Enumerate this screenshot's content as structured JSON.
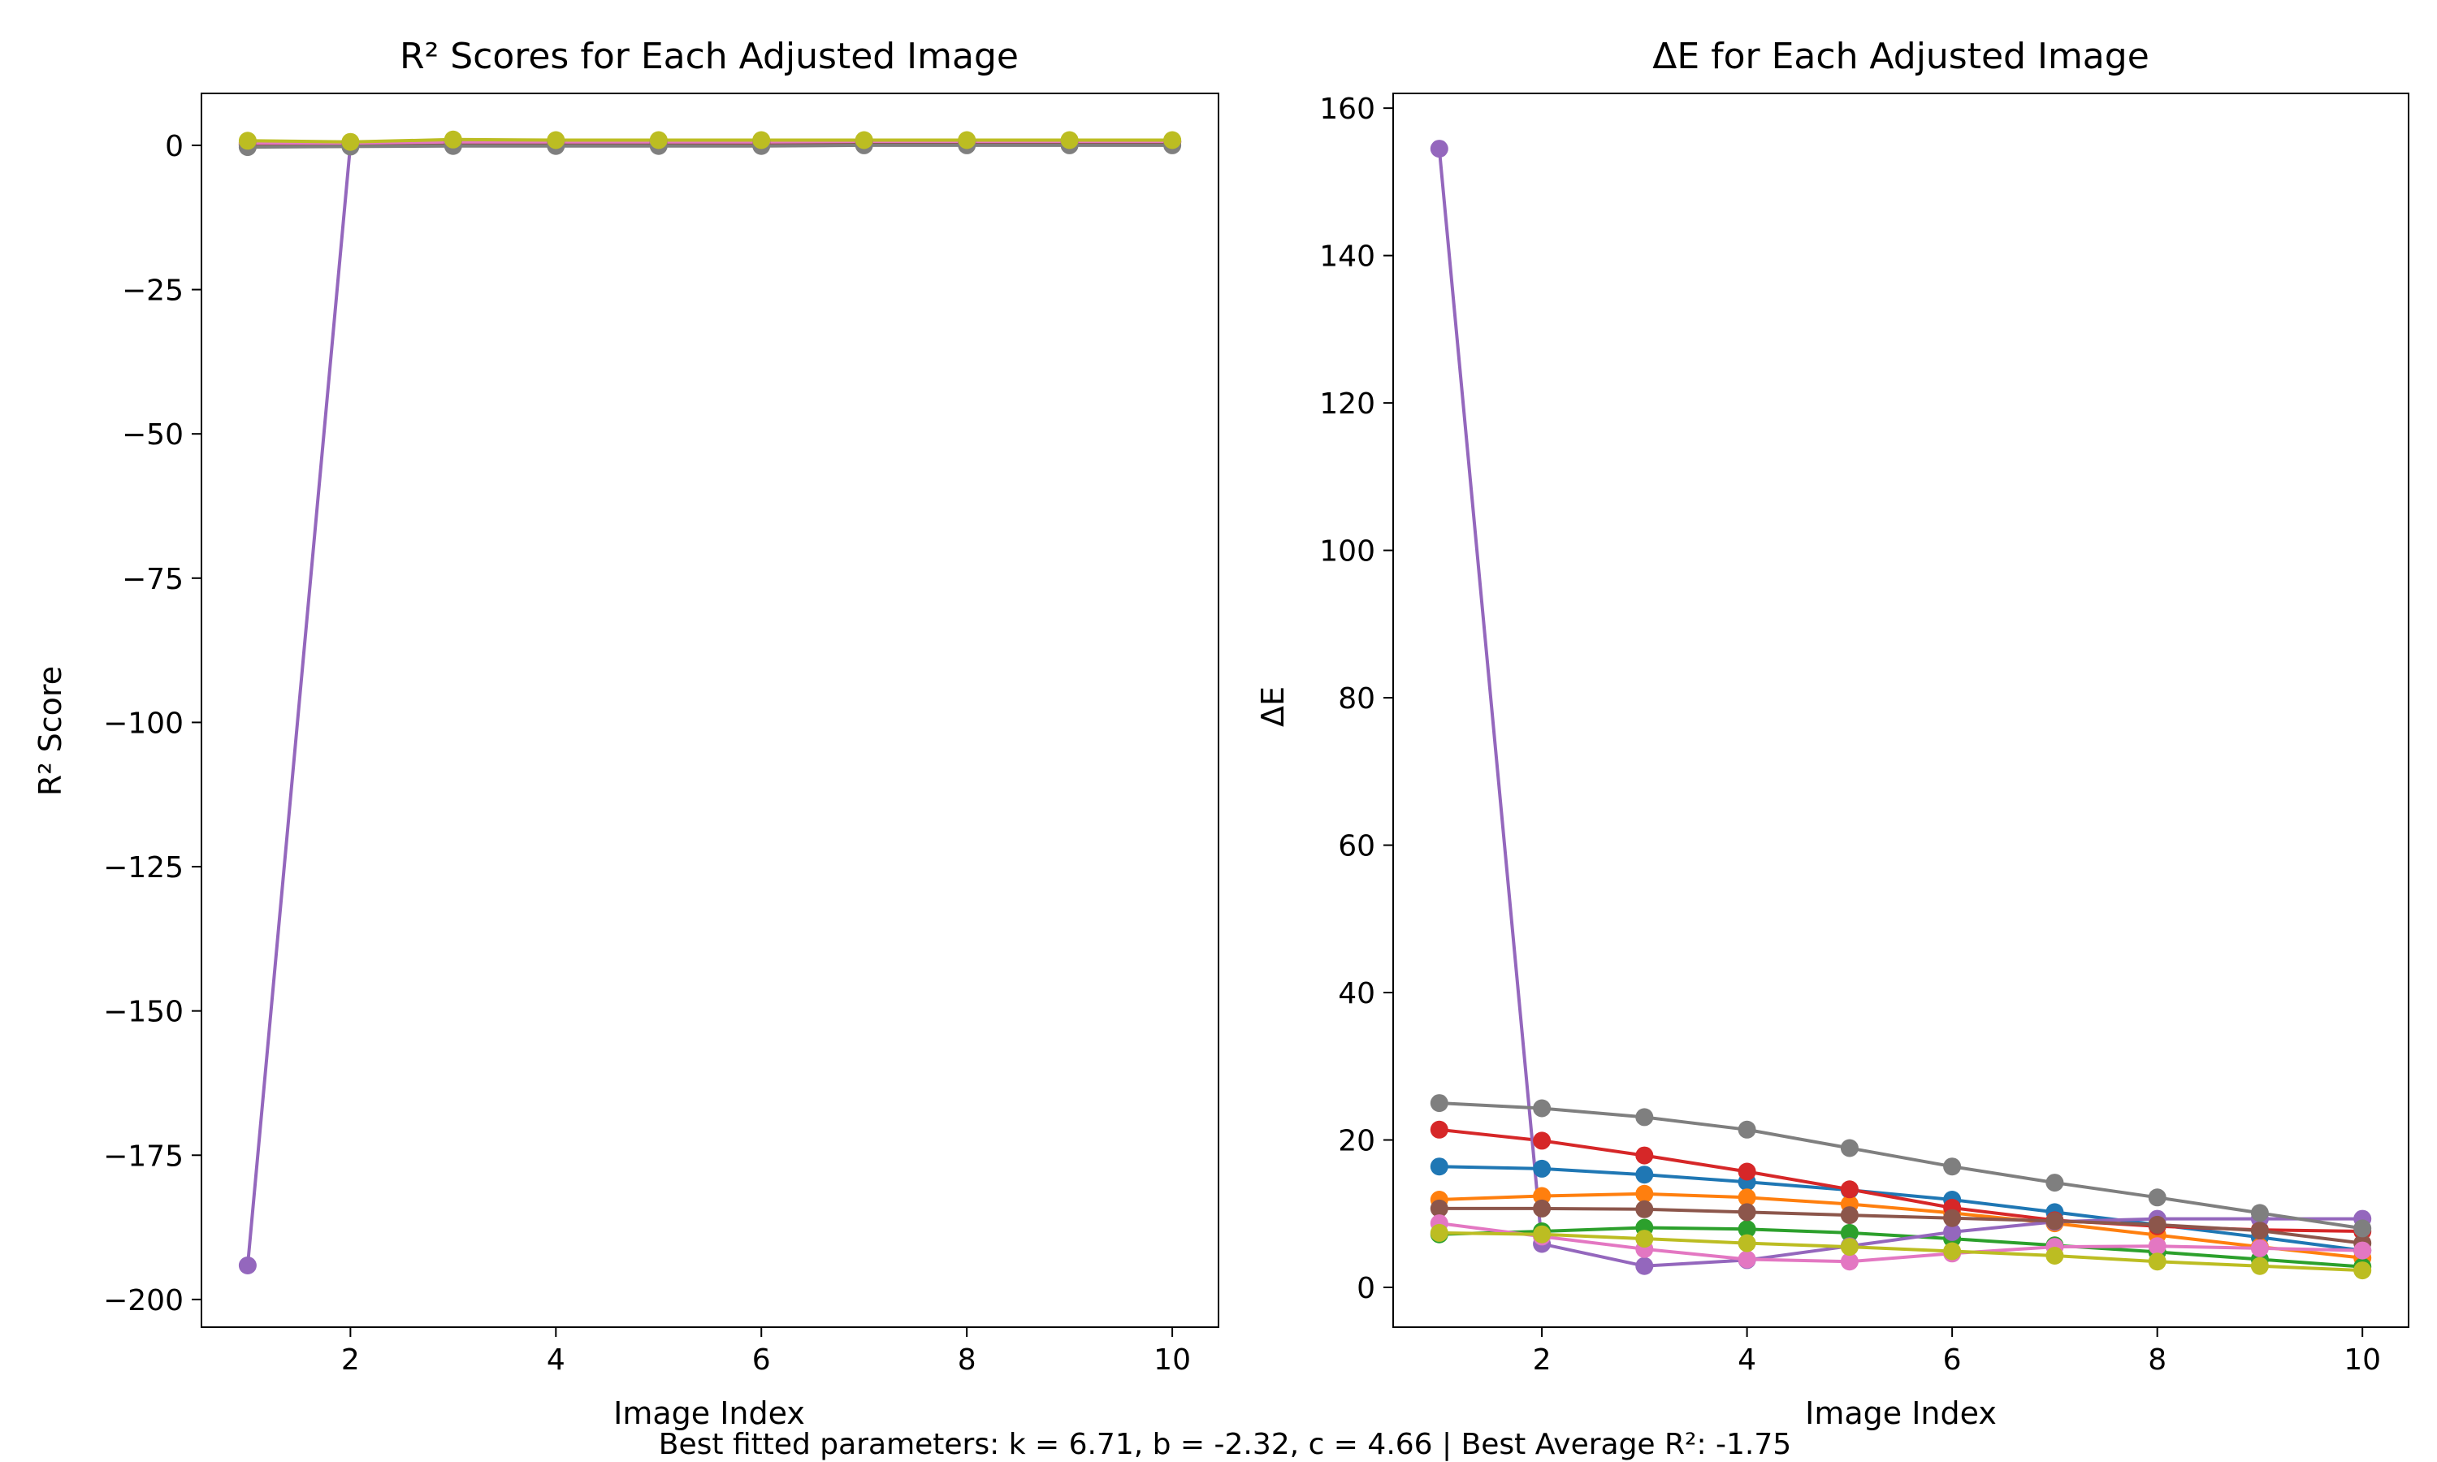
{
  "footer": "Best fitted parameters: k = 6.71, b = -2.32, c = 4.66 | Best Average R²: -1.75",
  "colors": [
    "#1f77b4",
    "#ff7f0e",
    "#2ca02c",
    "#d62728",
    "#9467bd",
    "#8c564b",
    "#e377c2",
    "#7f7f7f",
    "#bcbd22"
  ],
  "chart_data": [
    {
      "type": "line",
      "title": "R² Scores for Each Adjusted Image",
      "xlabel": "Image Index",
      "ylabel": "R² Score",
      "xlim": [
        0.55,
        10.45
      ],
      "ylim": [
        -204.8,
        9.0
      ],
      "xticks": [
        2,
        4,
        6,
        8,
        10
      ],
      "yticks": [
        0,
        -25,
        -50,
        -75,
        -100,
        -125,
        -150,
        -175,
        -200
      ],
      "grid": false,
      "x": [
        1,
        2,
        3,
        4,
        5,
        6,
        7,
        8,
        9,
        10
      ],
      "series": [
        {
          "color": "#1f77b4",
          "values": [
            0.2,
            0.3,
            0.5,
            0.5,
            0.5,
            0.5,
            0.6,
            0.6,
            0.6,
            0.6
          ]
        },
        {
          "color": "#ff7f0e",
          "values": [
            0.3,
            0.4,
            0.6,
            0.6,
            0.6,
            0.6,
            0.7,
            0.7,
            0.7,
            0.7
          ]
        },
        {
          "color": "#2ca02c",
          "values": [
            0.5,
            0.5,
            0.7,
            0.7,
            0.7,
            0.7,
            0.8,
            0.8,
            0.8,
            0.8
          ]
        },
        {
          "color": "#d62728",
          "values": [
            0.0,
            0.2,
            0.3,
            0.4,
            0.4,
            0.4,
            0.5,
            0.5,
            0.5,
            0.5
          ]
        },
        {
          "color": "#9467bd",
          "values": [
            -194.1,
            0.2,
            0.4,
            0.5,
            0.5,
            0.5,
            0.6,
            0.6,
            0.6,
            0.6
          ]
        },
        {
          "color": "#8c564b",
          "values": [
            0.1,
            0.2,
            0.4,
            0.4,
            0.4,
            0.5,
            0.5,
            0.6,
            0.6,
            0.6
          ]
        },
        {
          "color": "#e377c2",
          "values": [
            0.4,
            0.4,
            0.6,
            0.6,
            0.6,
            0.6,
            0.7,
            0.7,
            0.7,
            0.7
          ]
        },
        {
          "color": "#7f7f7f",
          "values": [
            -0.3,
            -0.2,
            -0.1,
            -0.1,
            -0.1,
            -0.1,
            0.0,
            0.0,
            0.0,
            0.0
          ]
        },
        {
          "color": "#bcbd22",
          "values": [
            0.8,
            0.6,
            1.0,
            0.9,
            0.9,
            0.9,
            0.9,
            0.9,
            0.9,
            0.9
          ]
        }
      ]
    },
    {
      "type": "line",
      "title": "ΔE for Each Adjusted Image",
      "xlabel": "Image Index",
      "ylabel": "ΔE",
      "xlim": [
        0.55,
        10.45
      ],
      "ylim": [
        -5.4,
        162.0
      ],
      "xticks": [
        2,
        4,
        6,
        8,
        10
      ],
      "yticks": [
        0,
        20,
        40,
        60,
        80,
        100,
        120,
        140,
        160
      ],
      "grid": false,
      "x": [
        1,
        2,
        3,
        4,
        5,
        6,
        7,
        8,
        9,
        10
      ],
      "series": [
        {
          "color": "#1f77b4",
          "values": [
            16.4,
            16.1,
            15.3,
            14.3,
            13.2,
            11.9,
            10.2,
            8.5,
            6.8,
            5.0
          ]
        },
        {
          "color": "#ff7f0e",
          "values": [
            11.9,
            12.4,
            12.7,
            12.2,
            11.3,
            10.1,
            8.7,
            7.1,
            5.5,
            4.0
          ]
        },
        {
          "color": "#2ca02c",
          "values": [
            7.2,
            7.6,
            8.1,
            7.9,
            7.4,
            6.6,
            5.7,
            4.8,
            3.8,
            2.8
          ]
        },
        {
          "color": "#d62728",
          "values": [
            21.4,
            19.9,
            17.9,
            15.7,
            13.3,
            10.8,
            9.1,
            8.3,
            7.8,
            7.6
          ]
        },
        {
          "color": "#9467bd",
          "values": [
            154.5,
            5.9,
            2.9,
            3.7,
            5.6,
            7.5,
            8.9,
            9.3,
            9.3,
            9.3
          ]
        },
        {
          "color": "#8c564b",
          "values": [
            10.7,
            10.7,
            10.6,
            10.2,
            9.8,
            9.4,
            9.0,
            8.5,
            7.7,
            6.0
          ]
        },
        {
          "color": "#e377c2",
          "values": [
            8.7,
            6.9,
            5.2,
            3.8,
            3.5,
            4.6,
            5.5,
            5.6,
            5.3,
            5.0
          ]
        },
        {
          "color": "#7f7f7f",
          "values": [
            25.0,
            24.3,
            23.1,
            21.4,
            18.9,
            16.4,
            14.2,
            12.2,
            10.1,
            8.0
          ]
        },
        {
          "color": "#bcbd22",
          "values": [
            7.4,
            7.2,
            6.6,
            6.0,
            5.5,
            4.9,
            4.3,
            3.5,
            2.9,
            2.3
          ]
        }
      ]
    }
  ]
}
